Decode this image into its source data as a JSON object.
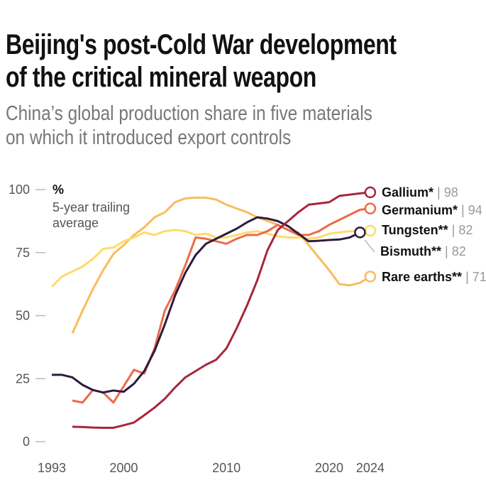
{
  "title_line1": "Beijing's post-Cold War development",
  "title_line2": "of the critical mineral weapon",
  "subtitle_line1": "China’s global production share in five materials",
  "subtitle_line2": "on which it introduced export controls",
  "chart_data": {
    "type": "line",
    "unit_label": "%",
    "note_line1": "5-year trailing",
    "note_line2": "average",
    "ylim": [
      0,
      100
    ],
    "yticks": [
      "0",
      "25",
      "50",
      "75",
      "100"
    ],
    "xticks": [
      "1993",
      "2000",
      "2010",
      "2020",
      "2024"
    ],
    "xlim": [
      1993,
      2024
    ],
    "grid": false,
    "series": [
      {
        "name": "Rare earths**",
        "end_label": "71",
        "color": "#f9bc5b",
        "start": 1995,
        "values": [
          43,
          52,
          60.5,
          68,
          74.5,
          78,
          82,
          85,
          89,
          91,
          95,
          96.5,
          96.8,
          96.8,
          96,
          94,
          92.5,
          91,
          89,
          87.5,
          86,
          84,
          83,
          78,
          73,
          68,
          62.5,
          62,
          63,
          65.5
        ]
      },
      {
        "name": "Tungsten**",
        "end_label": "82",
        "color": "#fcdc6b",
        "start": 1993,
        "values": [
          61.5,
          65.5,
          67.5,
          69.5,
          72.5,
          76.5,
          77,
          79.5,
          81,
          83,
          82,
          83.5,
          84,
          83.5,
          82,
          82.5,
          81,
          81,
          82,
          83,
          83.5,
          82.5,
          81.5,
          81,
          81,
          80.5,
          81,
          82.5,
          83,
          83.5,
          83.5,
          83.7
        ]
      },
      {
        "name": "Germanium*",
        "end_label": "94",
        "color": "#ec6a4b",
        "start": 1995,
        "values": [
          16.3,
          15.5,
          20.5,
          19.5,
          15.5,
          22,
          28.5,
          27,
          37,
          52,
          60,
          70,
          81,
          80.5,
          79.5,
          78.5,
          80.5,
          82,
          82,
          83.5,
          86,
          84,
          82,
          82,
          83.5,
          86,
          88,
          90,
          92,
          92.5
        ]
      },
      {
        "name": "Bismuth**",
        "end_label": "82",
        "color": "#2e1a3d",
        "start": 1993,
        "values": [
          26.5,
          26.5,
          25.5,
          22.5,
          20.5,
          19.5,
          20.3,
          19.8,
          23,
          28,
          36,
          46.5,
          58,
          67,
          74,
          78.5,
          80.5,
          82.5,
          84.5,
          87,
          89,
          88.5,
          87.5,
          85.5,
          82.5,
          79.5,
          79.7,
          80,
          80.2,
          81,
          83
        ]
      },
      {
        "name": "Gallium*",
        "end_label": "98",
        "color": "#a8263b",
        "start": 1995,
        "values": [
          5.9,
          5.8,
          5.6,
          5.5,
          5.5,
          6.5,
          7.6,
          10.5,
          13.5,
          17,
          21.5,
          25.5,
          28,
          30.5,
          32.5,
          37,
          45,
          54,
          64,
          76,
          84,
          87.5,
          91,
          94,
          94.5,
          95,
          97.5,
          98,
          98.5,
          98.9
        ]
      }
    ]
  }
}
